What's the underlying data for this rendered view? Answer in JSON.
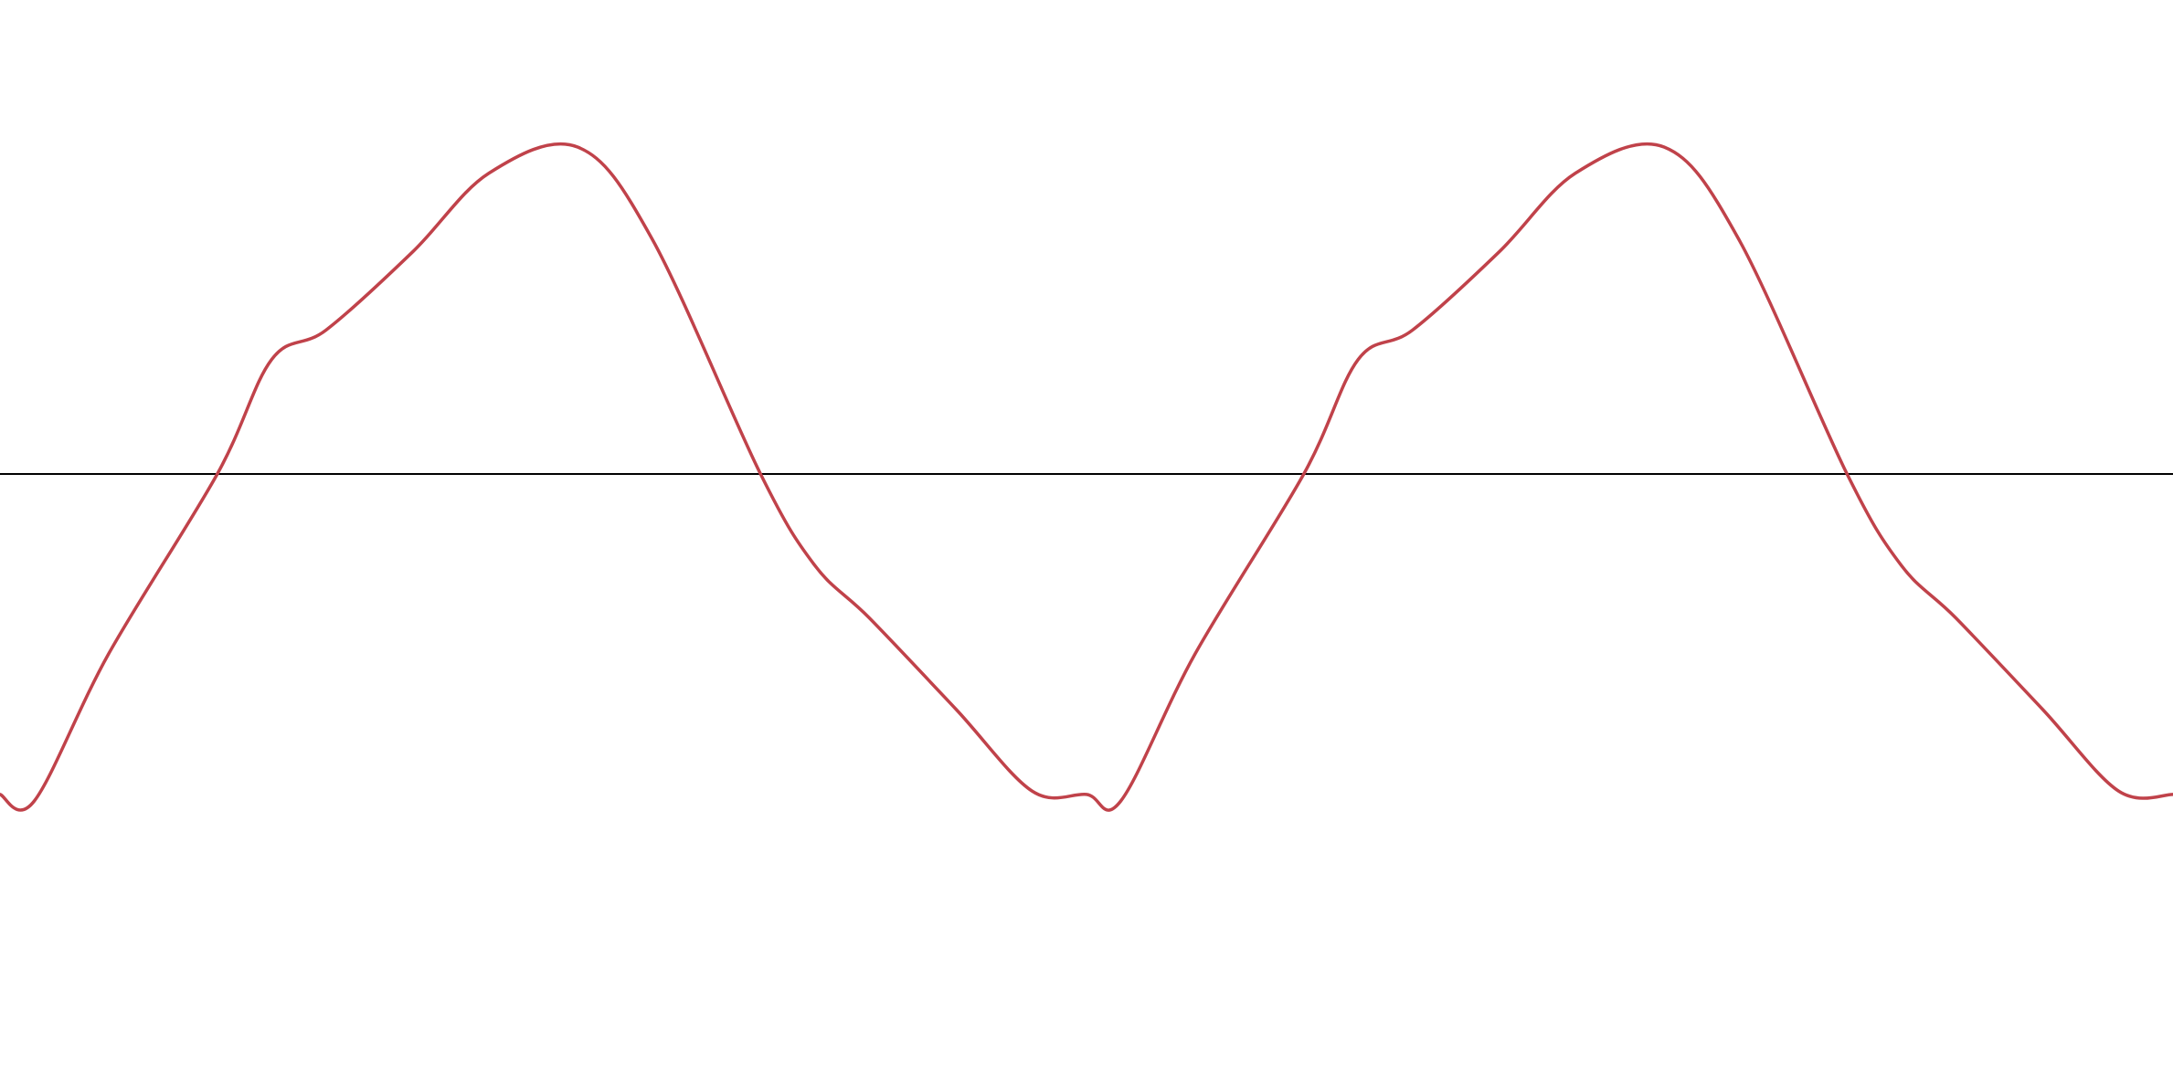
{
  "chart_data": {
    "type": "line",
    "title": "",
    "xlabel": "",
    "ylabel": "",
    "grid": false,
    "legend": "none",
    "x_range": [
      0,
      2.0
    ],
    "y_range": [
      -1.4,
      1.0
    ],
    "baseline_y": 0,
    "series": [
      {
        "color": "#c0424a",
        "x": [
          0.0,
          0.0316,
          0.1,
          0.2,
          0.25,
          0.3,
          0.38,
          0.45,
          0.5316,
          0.6,
          0.7,
          0.75,
          0.8,
          0.88,
          0.95,
          1.0,
          1.0316,
          1.1,
          1.2,
          1.25,
          1.3,
          1.38,
          1.45,
          1.5316,
          1.6,
          1.7,
          1.75,
          1.8,
          1.88,
          1.95,
          2.0
        ],
        "values": [
          -0.98,
          -1.0,
          -0.55,
          0.0,
          0.35,
          0.44,
          0.68,
          0.92,
          1.0,
          0.72,
          0.0,
          -0.28,
          -0.44,
          -0.72,
          -0.97,
          -0.98,
          -1.0,
          -0.55,
          0.0,
          0.35,
          0.44,
          0.68,
          0.92,
          1.0,
          0.72,
          0.0,
          -0.28,
          -0.44,
          -0.72,
          -0.97,
          -0.98
        ]
      }
    ],
    "colors": {
      "series": "#c0424a",
      "baseline": "#000000",
      "background": "#ffffff"
    }
  }
}
